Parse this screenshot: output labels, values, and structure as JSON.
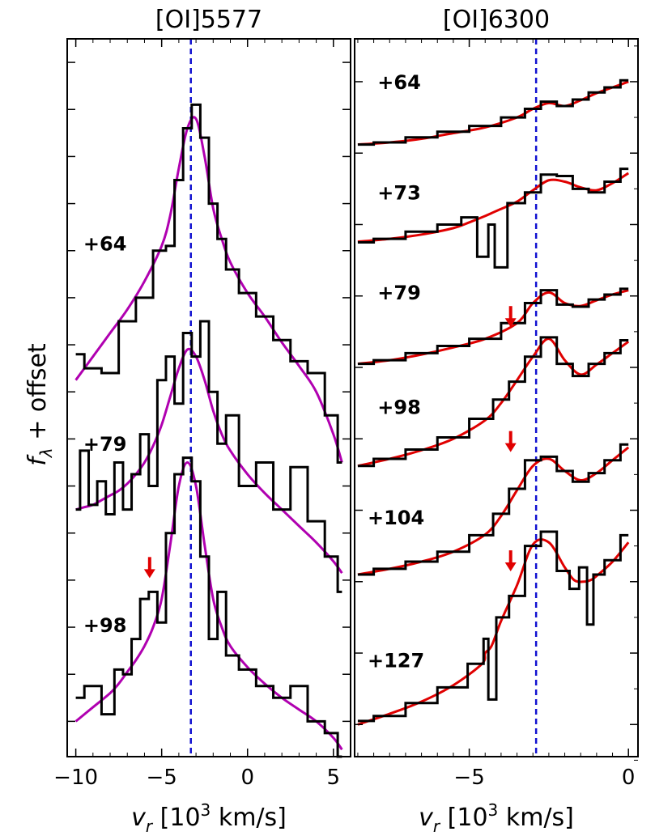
{
  "figure": {
    "ylabel_main": "f",
    "ylabel_sub": "λ",
    "ylabel_rest": " + offset"
  },
  "chart_data": [
    {
      "type": "line",
      "title": "[OI]5577",
      "xlabel_italic": "v",
      "xlabel_sub": "r",
      "xlabel_pre": " [10",
      "xlabel_sup": "3",
      "xlabel_post": " km/s]",
      "xlim": [
        -10.5,
        6.0
      ],
      "xticks": [
        -10,
        -5,
        0,
        5
      ],
      "xtick_labels": [
        "−10",
        "−5",
        "0",
        "5"
      ],
      "y_ticks": [
        1.4,
        1.6,
        1.8,
        2.0,
        2.2,
        2.4,
        2.6,
        2.8,
        3.0,
        3.2,
        3.4,
        3.6,
        3.8,
        4.0,
        4.2
      ],
      "ylim": [
        1.25,
        4.3
      ],
      "y_tick_labels_shown": false,
      "vline": {
        "x": -3.3,
        "color": "#1010d0",
        "style": "dashed"
      },
      "fit_color": "#b000b0",
      "data_color": "#000000",
      "series": [
        {
          "label": "+64",
          "label_x": -8.3,
          "label_y": 3.4,
          "x": [
            -10,
            -9,
            -8,
            -7,
            -6,
            -5,
            -4.5,
            -4,
            -3.5,
            -3,
            -2.5,
            -2,
            -1.5,
            -1,
            0,
            1,
            2,
            3,
            4,
            5,
            5.5
          ],
          "data": [
            2.96,
            2.9,
            2.88,
            3.1,
            3.2,
            3.4,
            3.42,
            3.7,
            3.92,
            4.02,
            3.88,
            3.6,
            3.45,
            3.32,
            3.22,
            3.12,
            3.02,
            2.93,
            2.88,
            2.7,
            2.5
          ],
          "fit": [
            2.85,
            2.95,
            3.05,
            3.15,
            3.27,
            3.42,
            3.55,
            3.75,
            3.92,
            3.96,
            3.8,
            3.58,
            3.45,
            3.35,
            3.22,
            3.12,
            3.01,
            2.91,
            2.8,
            2.62,
            2.5
          ]
        },
        {
          "label": "+79",
          "label_x": -8.3,
          "label_y": 2.55,
          "x": [
            -10,
            -9.5,
            -9,
            -8.5,
            -8,
            -7.5,
            -7,
            -6.5,
            -6,
            -5.5,
            -5,
            -4.5,
            -4,
            -3.5,
            -3,
            -2.5,
            -2,
            -1.5,
            -1,
            0,
            1,
            2,
            3,
            4,
            5,
            5.5
          ],
          "data": [
            2.3,
            2.55,
            2.32,
            2.42,
            2.28,
            2.5,
            2.3,
            2.45,
            2.62,
            2.4,
            2.85,
            2.95,
            2.75,
            3.05,
            2.95,
            3.1,
            2.8,
            2.58,
            2.7,
            2.4,
            2.5,
            2.3,
            2.48,
            2.25,
            2.1,
            1.95
          ],
          "fit": [
            2.3,
            2.31,
            2.32,
            2.34,
            2.36,
            2.38,
            2.41,
            2.45,
            2.5,
            2.57,
            2.66,
            2.78,
            2.9,
            2.98,
            2.95,
            2.85,
            2.72,
            2.62,
            2.55,
            2.45,
            2.37,
            2.3,
            2.23,
            2.16,
            2.08,
            2.03
          ]
        },
        {
          "label": "+98",
          "label_x": -8.3,
          "label_y": 1.78,
          "x": [
            -10,
            -9,
            -8,
            -7.5,
            -7,
            -6.5,
            -6,
            -5.5,
            -5,
            -4.5,
            -4,
            -3.5,
            -3,
            -2.5,
            -2,
            -1.5,
            -1,
            0,
            1,
            2,
            3,
            4,
            5,
            5.5
          ],
          "data": [
            1.5,
            1.55,
            1.43,
            1.62,
            1.6,
            1.75,
            1.92,
            1.95,
            1.82,
            2.2,
            2.45,
            2.52,
            2.42,
            2.1,
            1.75,
            1.95,
            1.68,
            1.62,
            1.55,
            1.5,
            1.55,
            1.4,
            1.35,
            1.25
          ],
          "fit": [
            1.4,
            1.46,
            1.52,
            1.56,
            1.61,
            1.66,
            1.72,
            1.8,
            1.92,
            2.15,
            2.4,
            2.5,
            2.4,
            2.15,
            1.92,
            1.8,
            1.72,
            1.63,
            1.56,
            1.5,
            1.45,
            1.4,
            1.33,
            1.28
          ]
        }
      ],
      "arrows": [
        {
          "x": -5.7,
          "y": 2.05
        }
      ]
    },
    {
      "type": "line",
      "title": "[OI]6300",
      "xlabel_italic": "v",
      "xlabel_sub": "r",
      "xlabel_pre": " [10",
      "xlabel_sup": "3",
      "xlabel_post": " km/s]",
      "xlim": [
        -8.6,
        0.3
      ],
      "xticks": [
        -5,
        0
      ],
      "xtick_labels": [
        "−5",
        "0"
      ],
      "y_ticks": [
        1.0,
        2.0,
        3.0,
        4.0,
        5.0,
        6.0,
        7.0,
        8.0,
        9.0,
        10.0
      ],
      "ylim": [
        0.55,
        10.6
      ],
      "y_tick_labels_shown": false,
      "vline": {
        "x": -2.9,
        "color": "#1010d0",
        "style": "dashed"
      },
      "fit_color": "#e00000",
      "data_color": "#000000",
      "series": [
        {
          "label": "+64",
          "label_x": -7.2,
          "label_y": 9.9,
          "x": [
            -8.5,
            -7.5,
            -6.5,
            -5.5,
            -4.5,
            -3.5,
            -3,
            -2.5,
            -2,
            -1.5,
            -1,
            -0.5,
            0
          ],
          "data": [
            9.12,
            9.15,
            9.22,
            9.3,
            9.38,
            9.5,
            9.62,
            9.72,
            9.66,
            9.75,
            9.85,
            9.92,
            10.02
          ],
          "fit": [
            9.12,
            9.15,
            9.2,
            9.28,
            9.36,
            9.5,
            9.62,
            9.7,
            9.66,
            9.74,
            9.84,
            9.92,
            10.0
          ]
        },
        {
          "label": "+73",
          "label_x": -7.2,
          "label_y": 8.35,
          "x": [
            -8.5,
            -7.5,
            -6.5,
            -5.5,
            -5,
            -4.5,
            -4.3,
            -4.1,
            -3.5,
            -3,
            -2.5,
            -2,
            -1.5,
            -1,
            -0.5,
            0
          ],
          "data": [
            7.75,
            7.8,
            7.9,
            8.0,
            8.1,
            7.55,
            8.0,
            7.4,
            8.3,
            8.45,
            8.7,
            8.68,
            8.5,
            8.45,
            8.6,
            8.78
          ],
          "fit": [
            7.76,
            7.8,
            7.86,
            7.95,
            8.03,
            8.12,
            8.16,
            8.2,
            8.32,
            8.48,
            8.62,
            8.6,
            8.52,
            8.48,
            8.58,
            8.72
          ]
        },
        {
          "label": "+79",
          "label_x": -7.2,
          "label_y": 6.95,
          "x": [
            -8.5,
            -7.5,
            -6.5,
            -5.5,
            -4.5,
            -3.5,
            -3,
            -2.5,
            -2,
            -1.5,
            -1,
            -0.5,
            0
          ],
          "data": [
            6.05,
            6.1,
            6.2,
            6.3,
            6.4,
            6.62,
            6.9,
            7.08,
            6.88,
            6.85,
            6.95,
            7.02,
            7.1
          ],
          "fit": [
            6.05,
            6.1,
            6.18,
            6.28,
            6.4,
            6.62,
            6.9,
            7.05,
            6.9,
            6.86,
            6.94,
            7.02,
            7.08
          ]
        },
        {
          "label": "+98",
          "label_x": -7.2,
          "label_y": 5.35,
          "x": [
            -8.5,
            -7.5,
            -6.5,
            -5.5,
            -4.5,
            -4,
            -3.5,
            -3,
            -2.5,
            -2,
            -1.5,
            -1,
            -0.5,
            0
          ],
          "data": [
            4.62,
            4.72,
            4.85,
            5.02,
            5.28,
            5.55,
            5.8,
            6.15,
            6.42,
            6.05,
            5.88,
            6.05,
            6.2,
            6.38
          ],
          "fit": [
            4.62,
            4.72,
            4.84,
            5.0,
            5.26,
            5.5,
            5.82,
            6.15,
            6.4,
            6.1,
            5.9,
            6.04,
            6.2,
            6.36
          ]
        },
        {
          "label": "+104",
          "label_x": -7.3,
          "label_y": 3.8,
          "x": [
            -8.5,
            -7.5,
            -6.5,
            -5.5,
            -4.5,
            -4,
            -3.5,
            -3,
            -2.5,
            -2,
            -1.5,
            -1,
            -0.5,
            0
          ],
          "data": [
            3.1,
            3.18,
            3.28,
            3.42,
            3.65,
            3.95,
            4.3,
            4.7,
            4.75,
            4.55,
            4.4,
            4.52,
            4.7,
            4.92
          ],
          "fit": [
            3.1,
            3.18,
            3.28,
            3.42,
            3.66,
            3.92,
            4.28,
            4.62,
            4.72,
            4.55,
            4.42,
            4.52,
            4.7,
            4.88
          ]
        },
        {
          "label": "+127",
          "label_x": -7.3,
          "label_y": 1.8,
          "x": [
            -8.5,
            -7.5,
            -6.5,
            -5.5,
            -4.6,
            -4.5,
            -4.3,
            -4,
            -3.5,
            -3,
            -2.5,
            -2,
            -1.7,
            -1.4,
            -1.2,
            -1,
            -0.5,
            0
          ],
          "data": [
            1.05,
            1.12,
            1.3,
            1.52,
            1.85,
            2.2,
            1.35,
            2.5,
            2.8,
            3.5,
            3.7,
            3.15,
            2.9,
            3.2,
            2.4,
            3.1,
            3.3,
            3.65
          ],
          "fit": [
            1.0,
            1.15,
            1.32,
            1.55,
            1.85,
            2.0,
            2.1,
            2.45,
            2.95,
            3.52,
            3.55,
            3.2,
            3.02,
            3.0,
            3.02,
            3.08,
            3.28,
            3.55
          ]
        }
      ],
      "arrows": [
        {
          "x": -3.7,
          "y": 6.7
        },
        {
          "x": -3.7,
          "y": 4.95
        },
        {
          "x": -3.7,
          "y": 3.28
        }
      ]
    }
  ]
}
